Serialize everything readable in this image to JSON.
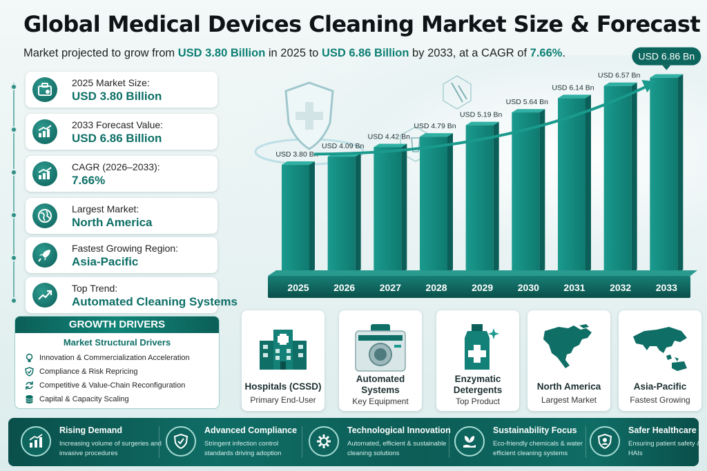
{
  "title": "Global Medical Devices Cleaning Market Size & Forecast",
  "subtitle": {
    "pre": "Market projected to grow from ",
    "v1": "USD 3.80 Billion",
    "mid1": " in 2025 to ",
    "v2": "USD 6.86 Billion",
    "mid2": " by 2033, at a CAGR of ",
    "v3": "7.66%",
    "post": "."
  },
  "stats": [
    {
      "label": "2025 Market Size:",
      "value": "USD 3.80 Billion",
      "icon": "briefcase-icon"
    },
    {
      "label": "2033 Forecast Value:",
      "value": "USD 6.86 Billion",
      "icon": "growth-chart-icon"
    },
    {
      "label": "CAGR (2026–2033):",
      "value": "7.66%",
      "icon": "growth-chart-icon"
    },
    {
      "label": "Largest Market:",
      "value": "North America",
      "icon": "globe-icon"
    },
    {
      "label": "Fastest Growing Region:",
      "value": "Asia-Pacific",
      "icon": "rocket-icon"
    },
    {
      "label": "Top Trend:",
      "value": "Automated Cleaning Systems",
      "icon": "trend-arrow-icon"
    }
  ],
  "drivers": {
    "header": "GROWTH DRIVERS",
    "subheader": "Market Structural Drivers",
    "items": [
      {
        "text": "Innovation & Commercialization Acceleration",
        "icon": "lightbulb-icon"
      },
      {
        "text": "Compliance & Risk Repricing",
        "icon": "shield-check-icon"
      },
      {
        "text": "Competitive & Value-Chain Reconfiguration",
        "icon": "refresh-icon"
      },
      {
        "text": "Capital & Capacity Scaling",
        "icon": "coins-icon"
      }
    ]
  },
  "chart_data": {
    "type": "bar",
    "categories": [
      "2025",
      "2026",
      "2027",
      "2028",
      "2029",
      "2030",
      "2031",
      "2032",
      "2033"
    ],
    "values": [
      3.8,
      4.09,
      4.42,
      4.79,
      5.19,
      5.64,
      6.14,
      6.57,
      6.86
    ],
    "data_labels": [
      "USD 3.80 Bn",
      "USD 4.09 Bn",
      "USD 4.42 Bn",
      "USD 4.79 Bn",
      "USD 5.19 Bn",
      "USD 5.64 Bn",
      "USD 6.14 Bn",
      "USD 6.57 Bn",
      "USD 6.86 Bn"
    ],
    "unit": "USD Bn",
    "highlighted_label": "USD 6.86 Bn",
    "ylim": [
      0,
      7
    ],
    "grid": false,
    "legend": "none",
    "bar_color": "#13877c"
  },
  "segments": [
    {
      "name": "Hospitals (CSSD)",
      "desc": "Primary End-User",
      "icon": "hospital-icon"
    },
    {
      "name": "Automated Systems",
      "desc": "Key Equipment",
      "icon": "washer-disinfector-icon"
    },
    {
      "name": "Enzymatic Detergents",
      "desc": "Top Product",
      "icon": "detergent-bottle-icon"
    },
    {
      "name": "North America",
      "desc": "Largest Market",
      "icon": "north-america-map-icon"
    },
    {
      "name": "Asia-Pacific",
      "desc": "Fastest Growing",
      "icon": "asia-pacific-map-icon"
    }
  ],
  "footer": [
    {
      "title": "Rising Demand",
      "desc": "Increasing volume of surgeries and invasive procedures",
      "icon": "bar-growth-icon"
    },
    {
      "title": "Advanced Compliance",
      "desc": "Stringent infection control standards driving adoption",
      "icon": "shield-check-icon"
    },
    {
      "title": "Technological Innovation",
      "desc": "Automated, efficient & sustainable cleaning solutions",
      "icon": "gear-icon"
    },
    {
      "title": "Sustainability Focus",
      "desc": "Eco-friendly chemicals & water efficient cleaning systems",
      "icon": "leaf-hand-icon"
    },
    {
      "title": "Safer Healthcare",
      "desc": "Ensuring patient safety & reducing HAIs",
      "icon": "patient-shield-icon"
    }
  ],
  "colors": {
    "accent": "#0c7f74",
    "dark": "#0b5f58",
    "bar": "#13877c"
  }
}
